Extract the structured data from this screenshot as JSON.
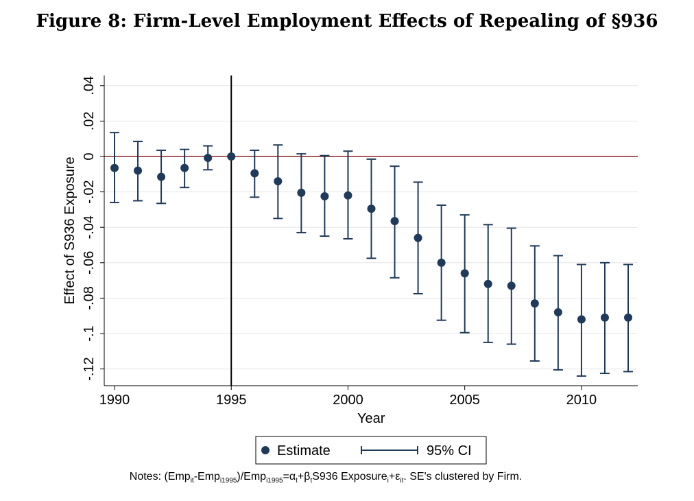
{
  "title": "Figure 8: Firm-Level Employment Effects of Repealing of §936",
  "notes": {
    "prefix": "Notes: (Emp",
    "sub1": "it",
    "t2": "-Emp",
    "sub2": "i1995",
    "t3": ")/Emp",
    "sub3": "i1995",
    "t4": "=α",
    "sub4": "t",
    "t5": "+β",
    "sub5": "t",
    "t6": "S936 Exposure",
    "sub6": "i",
    "t7": "+ε",
    "sub7": "it",
    "t8": ". SE's clustered by Firm."
  },
  "colors": {
    "marker": "#1f3a5a",
    "zero_line": "#8b2323",
    "grid": "#e6e6e6",
    "event_line": "#000000"
  },
  "chart_data": {
    "type": "scatter",
    "xlabel": "Year",
    "ylabel": "Effect of S936 Exposure",
    "xlim": [
      1990,
      2012
    ],
    "ylim": [
      -0.13,
      0.04
    ],
    "xticks": [
      1990,
      1995,
      2000,
      2005,
      2010
    ],
    "yticks": [
      0.04,
      0.02,
      0,
      -0.02,
      -0.04,
      -0.06,
      -0.08,
      -0.1,
      -0.12
    ],
    "ytick_labels": [
      ".04",
      ".02",
      "0",
      "-.02",
      "-.04",
      "-.06",
      "-.08",
      "-.1",
      "-.12"
    ],
    "hline": 0,
    "vline": 1995,
    "grid": true,
    "legend": {
      "estimate": "Estimate",
      "ci": "95% CI",
      "position": "bottom"
    },
    "series": [
      {
        "name": "Estimate",
        "x": [
          1990,
          1991,
          1992,
          1993,
          1994,
          1995,
          1996,
          1997,
          1998,
          1999,
          2000,
          2001,
          2002,
          2003,
          2004,
          2005,
          2006,
          2007,
          2008,
          2009,
          2010,
          2011,
          2012
        ],
        "y": [
          -0.0065,
          -0.008,
          -0.0115,
          -0.0065,
          -0.0008,
          0.0,
          -0.0095,
          -0.014,
          -0.0205,
          -0.0225,
          -0.022,
          -0.0295,
          -0.0365,
          -0.046,
          -0.06,
          -0.066,
          -0.072,
          -0.073,
          -0.083,
          -0.088,
          -0.092,
          -0.091,
          -0.091
        ]
      },
      {
        "name": "95% CI",
        "x": [
          1990,
          1991,
          1992,
          1993,
          1994,
          1995,
          1996,
          1997,
          1998,
          1999,
          2000,
          2001,
          2002,
          2003,
          2004,
          2005,
          2006,
          2007,
          2008,
          2009,
          2010,
          2011,
          2012
        ],
        "lower": [
          -0.026,
          -0.025,
          -0.0265,
          -0.0175,
          -0.0075,
          0.0,
          -0.023,
          -0.035,
          -0.043,
          -0.045,
          -0.0465,
          -0.0575,
          -0.0685,
          -0.0775,
          -0.0925,
          -0.0995,
          -0.105,
          -0.106,
          -0.1155,
          -0.1205,
          -0.124,
          -0.1225,
          -0.1215
        ],
        "upper": [
          0.0135,
          0.0085,
          0.0035,
          0.004,
          0.006,
          0.0,
          0.0035,
          0.0065,
          0.0015,
          0.0005,
          0.003,
          -0.0015,
          -0.0055,
          -0.0145,
          -0.0275,
          -0.033,
          -0.0385,
          -0.0405,
          -0.0505,
          -0.056,
          -0.061,
          -0.06,
          -0.061
        ]
      }
    ]
  }
}
